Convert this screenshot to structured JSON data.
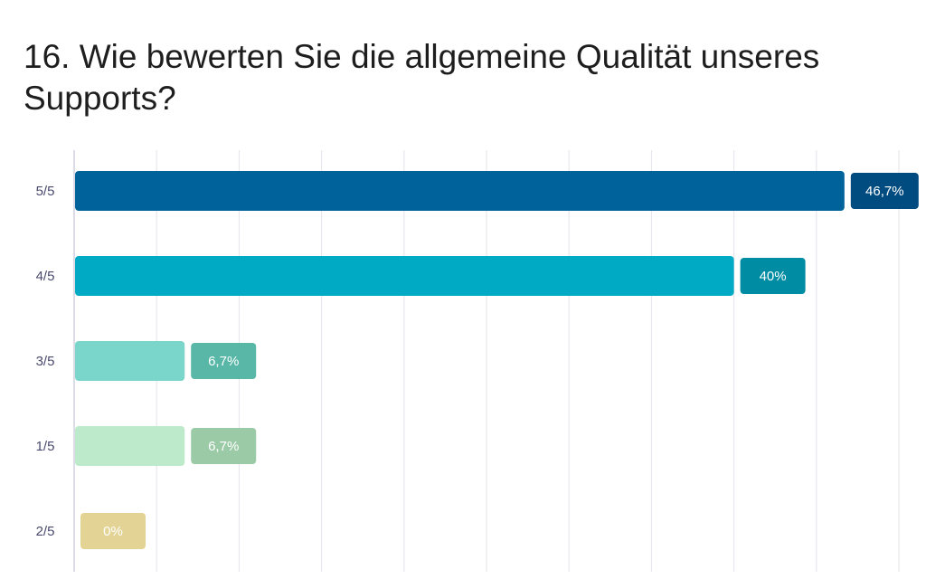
{
  "chart_data": {
    "type": "bar",
    "orientation": "horizontal",
    "title": "16. Wie bewerten Sie die allgemeine Qualität unseres Supports?",
    "categories": [
      "5/5",
      "4/5",
      "3/5",
      "1/5",
      "2/5"
    ],
    "values": [
      46.7,
      40,
      6.7,
      6.7,
      0
    ],
    "value_labels": [
      "46,7%",
      "40%",
      "6,7%",
      "6,7%",
      "0%"
    ],
    "xlim": [
      0,
      50
    ],
    "grid": true,
    "legend": "none"
  },
  "colors": {
    "bars": [
      "#00629b",
      "#00aac4",
      "#7ad6ca",
      "#bdeacb",
      "#e3d394"
    ],
    "badges": [
      "#004b80",
      "#008ca3",
      "#58b7a7",
      "#9bcaa6",
      "#e3d394"
    ],
    "grid": "#e3e3ea",
    "axis": "#d0d0e0"
  }
}
